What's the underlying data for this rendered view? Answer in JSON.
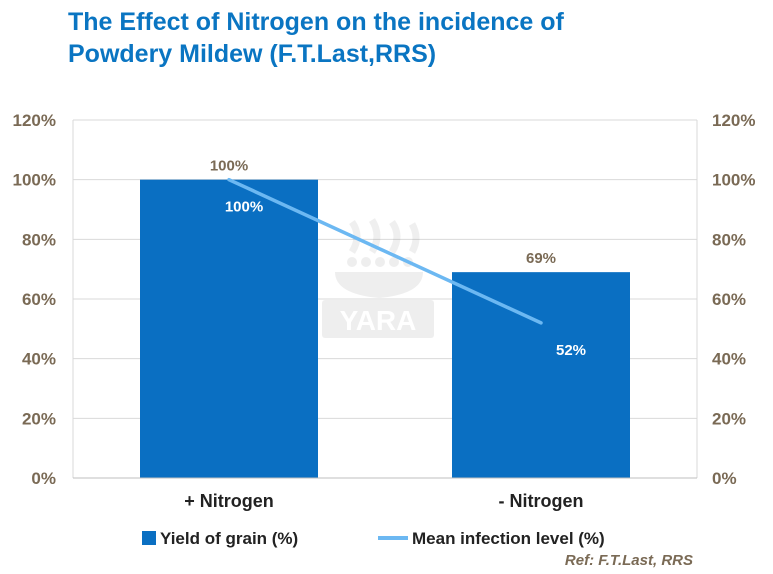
{
  "title": {
    "line1": "The Effect of Nitrogen on the incidence of",
    "line2": "Powdery Mildew (F.T.Last,RRS)"
  },
  "chart_data": {
    "type": "bar",
    "categories": [
      "+  Nitrogen",
      "- Nitrogen"
    ],
    "series": [
      {
        "name": "Yield of grain (%)",
        "kind": "bar",
        "axis": "left",
        "values": [
          100,
          69
        ],
        "labels": [
          "100%",
          "69%"
        ],
        "color": "#0a6fc2"
      },
      {
        "name": "Mean infection level (%)",
        "kind": "line",
        "axis": "right",
        "values": [
          100,
          52
        ],
        "labels": [
          "100%",
          "52%"
        ],
        "color": "#6cb8f2"
      }
    ],
    "ylim": [
      0,
      120
    ],
    "yticks": [
      "0%",
      "20%",
      "40%",
      "60%",
      "80%",
      "100%",
      "120%"
    ],
    "y2ticks": [
      "0%",
      "20%",
      "40%",
      "60%",
      "80%",
      "100%",
      "120%"
    ],
    "grid": true,
    "legend": "bottom"
  },
  "watermark": "YARA",
  "reference": "Ref: F.T.Last,  RRS",
  "colors": {
    "title": "#0a75c2",
    "axis_text": "#7a6a55",
    "grid": "#d9d9d9"
  }
}
